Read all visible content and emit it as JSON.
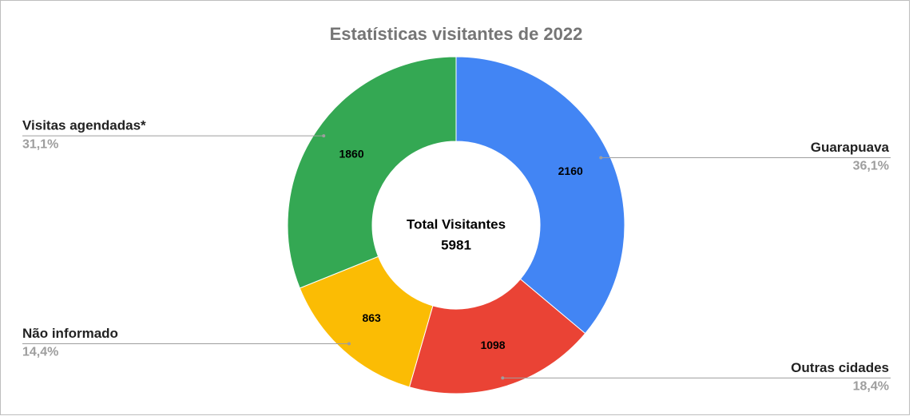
{
  "chart_data": {
    "type": "donut",
    "title": "Estatísticas visitantes de 2022",
    "categories": [
      "Guarapuava",
      "Outras cidades",
      "Não informado",
      "Visitas agendadas*"
    ],
    "values": [
      2160,
      1098,
      863,
      1860
    ],
    "share_labels": [
      "36,1%",
      "18,4%",
      "14,4%",
      "31,1%"
    ],
    "colors": [
      "#4285f4",
      "#ea4335",
      "#fbbc04",
      "#34a853"
    ],
    "center_label": "Total Visitantes",
    "total": 5981
  }
}
